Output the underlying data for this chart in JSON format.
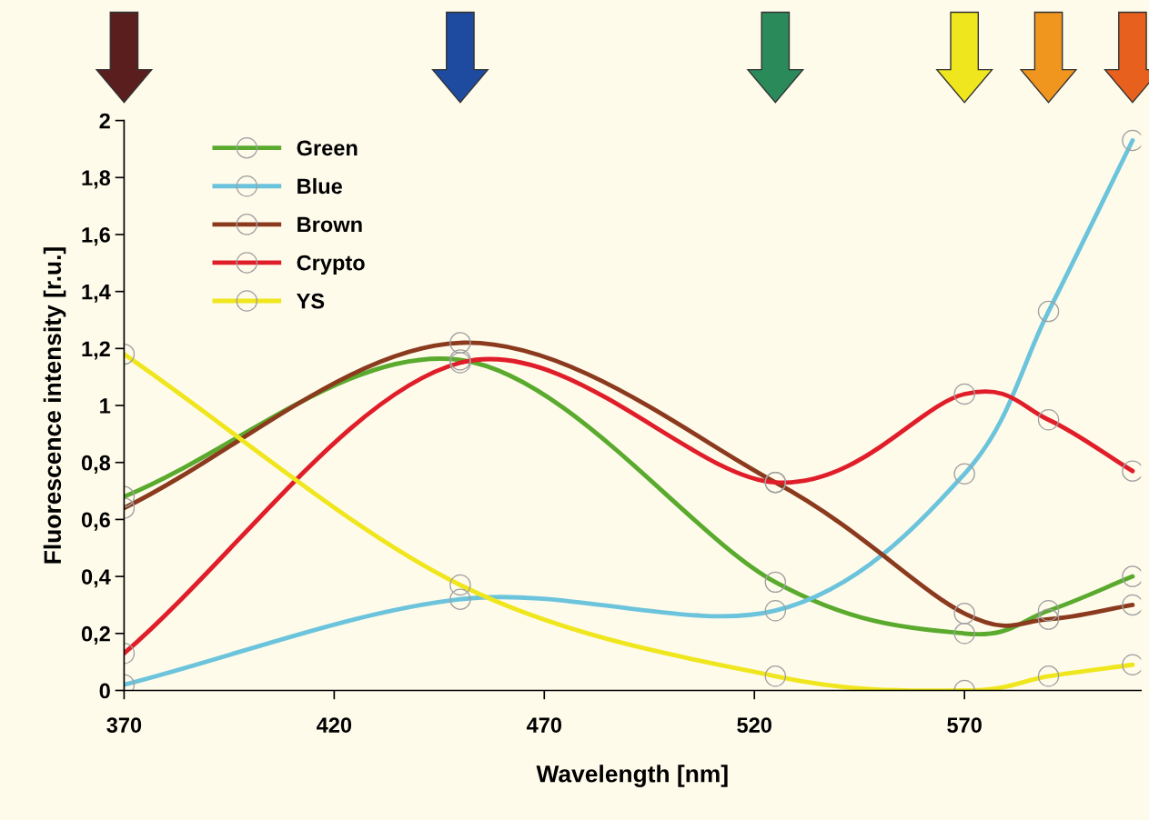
{
  "chart_data": {
    "type": "line",
    "xlabel": "Wavelength [nm]",
    "ylabel": "Fluorescence intensity [r.u.]",
    "x": [
      370,
      450,
      525,
      570,
      590,
      610
    ],
    "series": [
      {
        "name": "Green",
        "color": "#5aaa2e",
        "values": [
          0.68,
          1.16,
          0.38,
          0.2,
          0.28,
          0.4
        ]
      },
      {
        "name": "Blue",
        "color": "#6cc4dc",
        "values": [
          0.02,
          0.32,
          0.28,
          0.76,
          1.33,
          1.93
        ]
      },
      {
        "name": "Brown",
        "color": "#8b3a1e",
        "values": [
          0.64,
          1.22,
          0.73,
          0.27,
          0.25,
          0.3
        ]
      },
      {
        "name": "Crypto",
        "color": "#e01e2a",
        "values": [
          0.13,
          1.15,
          0.73,
          1.04,
          0.95,
          0.77
        ]
      },
      {
        "name": "YS",
        "color": "#f0e61e",
        "values": [
          1.18,
          0.37,
          0.05,
          0.0,
          0.05,
          0.09
        ]
      }
    ],
    "xlim": [
      370,
      612
    ],
    "xticks": [
      370,
      420,
      470,
      520,
      570
    ],
    "ylim": [
      0,
      2
    ],
    "yticks": [
      0,
      {
        "value": 0.2,
        "label": "0,2"
      },
      {
        "value": 0.4,
        "label": "0,4"
      },
      {
        "value": 0.6,
        "label": "0,6"
      },
      {
        "value": 0.8,
        "label": "0,8"
      },
      1,
      {
        "value": 1.2,
        "label": "1,2"
      },
      {
        "value": 1.4,
        "label": "1,4"
      },
      {
        "value": 1.6,
        "label": "1,6"
      },
      {
        "value": 1.8,
        "label": "1,8"
      },
      2
    ],
    "marker": "circle",
    "line_style": "solid",
    "legend": "top left",
    "grid": false
  }
}
